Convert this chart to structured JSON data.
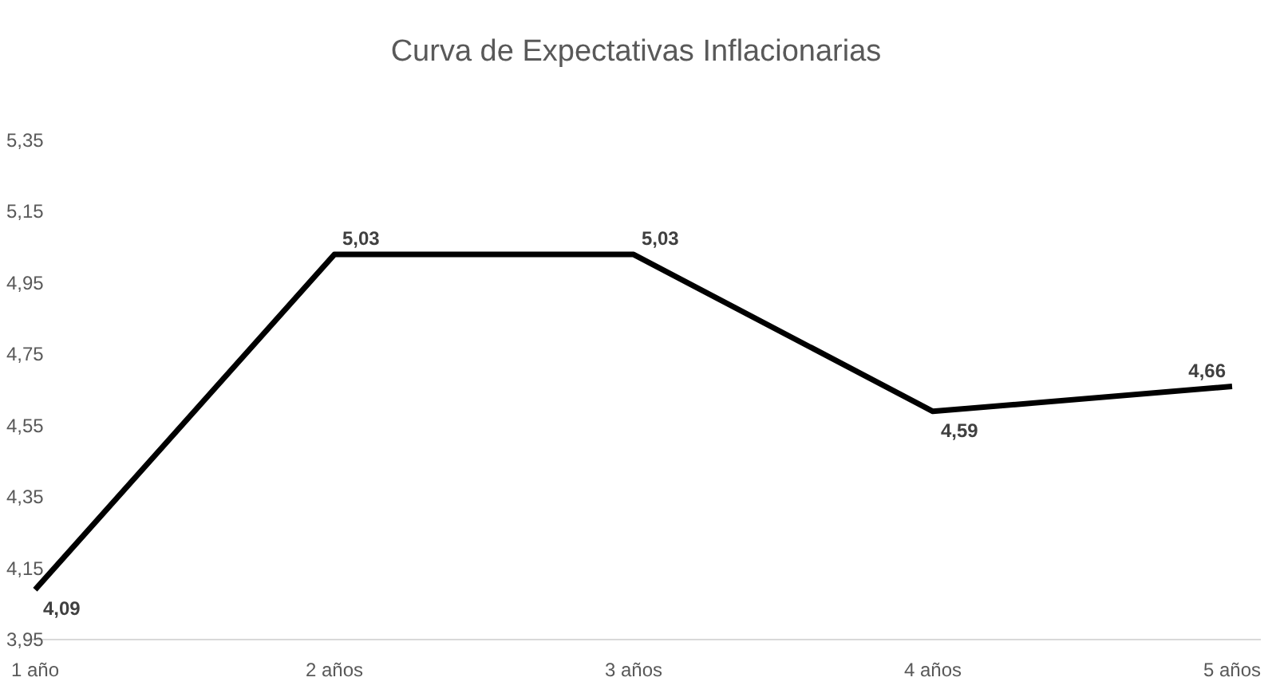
{
  "chart_data": {
    "type": "line",
    "title": "Curva de Expectativas Inflacionarias",
    "categories": [
      "1 año",
      "2 años",
      "3 años",
      "4 años",
      "5 años"
    ],
    "series": [
      {
        "color": "#000000",
        "values": [
          4.09,
          5.03,
          5.03,
          4.59,
          4.66
        ],
        "value_labels": [
          "4,09",
          "5,03",
          "5,03",
          "4,59",
          "4,66"
        ]
      }
    ],
    "ylim": [
      3.95,
      5.35
    ],
    "yticks": [
      {
        "value": 3.95,
        "label": "3,95"
      },
      {
        "value": 4.15,
        "label": "4,15"
      },
      {
        "value": 4.35,
        "label": "4,35"
      },
      {
        "value": 4.55,
        "label": "4,55"
      },
      {
        "value": 4.75,
        "label": "4,75"
      },
      {
        "value": 4.95,
        "label": "4,95"
      },
      {
        "value": 5.15,
        "label": "5,15"
      },
      {
        "value": 5.35,
        "label": "5,35"
      }
    ],
    "grid": false,
    "marker": "none",
    "line_style": "solid"
  }
}
